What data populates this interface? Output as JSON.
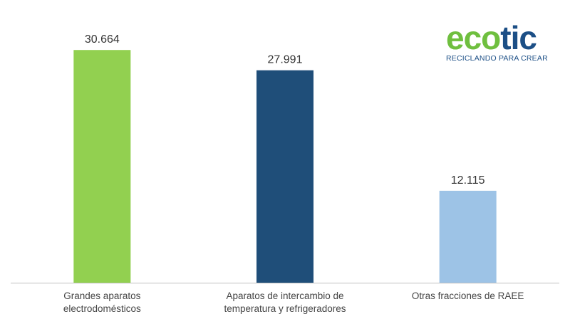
{
  "logo": {
    "word_part1": "eco",
    "word_part2": "tic",
    "tagline": "RECICLANDO PARA CREAR",
    "color_green": "#6fbf3f",
    "color_blue": "#1c4f86"
  },
  "chart_data": {
    "type": "bar",
    "categories": [
      [
        "Grandes aparatos",
        "electrodomésticos"
      ],
      [
        "Aparatos de intercambio de",
        "temperatura y refrigeradores"
      ],
      [
        "Otras fracciones de RAEE"
      ]
    ],
    "values": [
      30664,
      27991,
      12115
    ],
    "value_labels": [
      "30.664",
      "27.991",
      "12.115"
    ],
    "bar_colors": [
      "#92d050",
      "#1f4e79",
      "#9dc3e6"
    ],
    "ylim": [
      0,
      35000
    ],
    "grid": false,
    "legend": "none",
    "axis_color": "#bfbfbf"
  }
}
